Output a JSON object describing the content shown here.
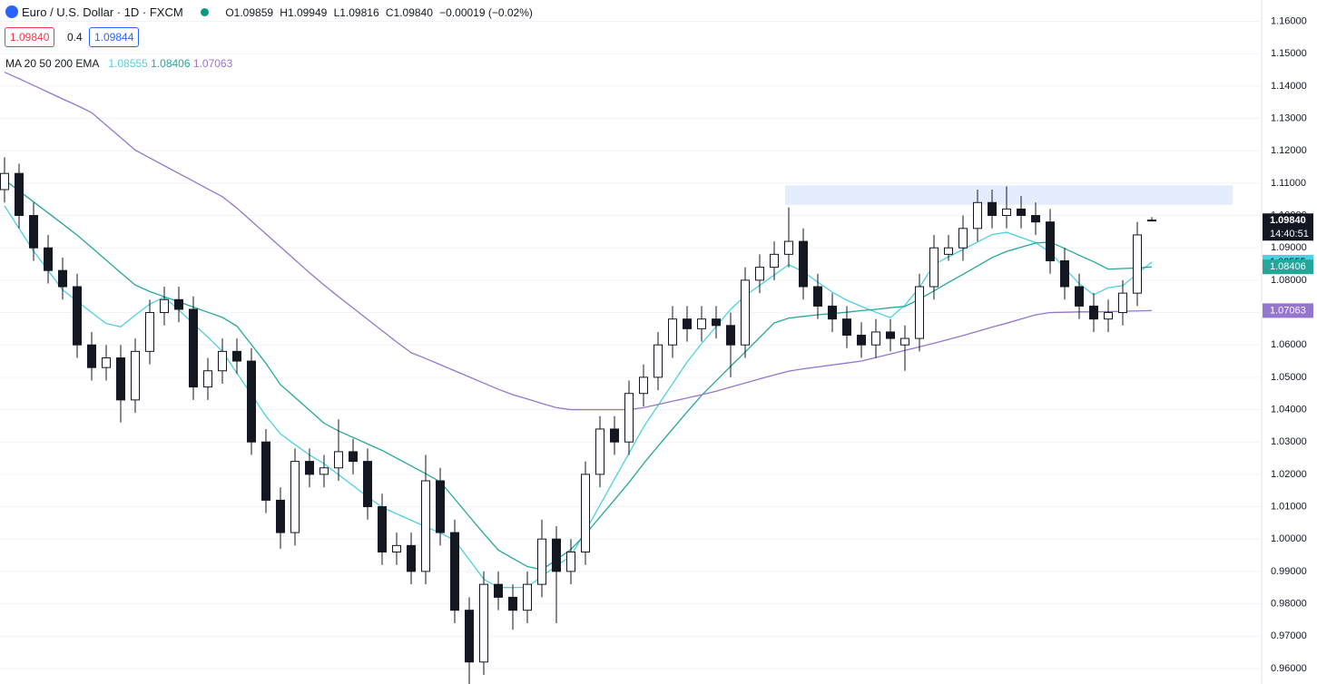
{
  "header": {
    "symbol": "Euro / U.S. Dollar · 1D · FXCM",
    "open": "O1.09859",
    "high": "H1.09949",
    "low": "L1.09816",
    "close": "C1.09840",
    "change": "−0.00019 (−0.02%)",
    "bid": "1.09840",
    "spread": "0.4",
    "ask": "1.09844",
    "indicator": "MA 20 50 200 EMA"
  },
  "chart_data": {
    "type": "candlestick",
    "open": [
      1.108,
      1.113,
      1.1,
      1.09,
      1.083,
      1.078,
      1.06,
      1.053,
      1.056,
      1.043,
      1.058,
      1.07,
      1.074,
      1.071,
      1.047,
      1.052,
      1.058,
      1.055,
      1.03,
      1.012,
      1.002,
      1.024,
      1.02,
      1.022,
      1.027,
      1.024,
      1.01,
      0.996,
      0.998,
      0.99,
      1.018,
      1.002,
      0.978,
      0.962,
      0.986,
      0.982,
      0.978,
      0.986,
      1.0,
      0.99,
      0.996,
      1.02,
      1.034,
      1.03,
      1.045,
      1.05,
      1.06,
      1.068,
      1.065,
      1.068,
      1.066,
      1.06,
      1.08,
      1.084,
      1.088,
      1.092,
      1.078,
      1.072,
      1.068,
      1.063,
      1.06,
      1.064,
      1.06,
      1.062,
      1.078,
      1.088,
      1.09,
      1.096,
      1.104,
      1.1,
      1.102,
      1.1,
      1.098,
      1.086,
      1.078,
      1.072,
      1.068,
      1.07,
      1.076,
      1.09859
    ],
    "high": [
      1.118,
      1.116,
      1.104,
      1.094,
      1.087,
      1.082,
      1.064,
      1.06,
      1.06,
      1.062,
      1.074,
      1.078,
      1.078,
      1.075,
      1.056,
      1.062,
      1.062,
      1.059,
      1.034,
      1.016,
      1.028,
      1.028,
      1.026,
      1.037,
      1.031,
      1.028,
      1.014,
      1.002,
      1.002,
      1.026,
      1.022,
      1.006,
      0.982,
      0.99,
      0.99,
      0.986,
      0.99,
      1.006,
      1.004,
      1.0,
      1.024,
      1.038,
      1.038,
      1.049,
      1.054,
      1.064,
      1.072,
      1.072,
      1.072,
      1.072,
      1.07,
      1.084,
      1.088,
      1.092,
      1.1025,
      1.096,
      1.082,
      1.076,
      1.072,
      1.067,
      1.068,
      1.068,
      1.066,
      1.082,
      1.094,
      1.094,
      1.1,
      1.108,
      1.108,
      1.109,
      1.106,
      1.104,
      1.102,
      1.09,
      1.082,
      1.076,
      1.074,
      1.08,
      1.098,
      1.09949
    ],
    "low": [
      1.104,
      1.096,
      1.086,
      1.079,
      1.074,
      1.056,
      1.049,
      1.049,
      1.036,
      1.039,
      1.054,
      1.066,
      1.067,
      1.043,
      1.043,
      1.048,
      1.051,
      1.026,
      1.008,
      0.997,
      0.998,
      1.016,
      1.016,
      1.018,
      1.02,
      1.006,
      0.992,
      0.992,
      0.986,
      0.986,
      0.998,
      0.974,
      0.955,
      0.958,
      0.978,
      0.972,
      0.974,
      0.982,
      0.974,
      0.986,
      0.992,
      1.016,
      1.026,
      1.026,
      1.041,
      1.046,
      1.056,
      1.061,
      1.061,
      1.062,
      1.05,
      1.056,
      1.076,
      1.08,
      1.084,
      1.074,
      1.068,
      1.064,
      1.059,
      1.056,
      1.056,
      1.058,
      1.052,
      1.058,
      1.074,
      1.086,
      1.086,
      1.092,
      1.096,
      1.096,
      1.096,
      1.094,
      1.082,
      1.074,
      1.068,
      1.064,
      1.064,
      1.066,
      1.072,
      1.09816
    ],
    "close": [
      1.113,
      1.1,
      1.09,
      1.083,
      1.078,
      1.06,
      1.053,
      1.056,
      1.043,
      1.058,
      1.07,
      1.074,
      1.071,
      1.047,
      1.052,
      1.058,
      1.055,
      1.03,
      1.012,
      1.002,
      1.024,
      1.02,
      1.022,
      1.027,
      1.024,
      1.01,
      0.996,
      0.998,
      0.99,
      1.018,
      1.002,
      0.978,
      0.962,
      0.986,
      0.982,
      0.978,
      0.986,
      1.0,
      0.99,
      0.996,
      1.02,
      1.034,
      1.03,
      1.045,
      1.05,
      1.06,
      1.068,
      1.065,
      1.068,
      1.066,
      1.06,
      1.08,
      1.084,
      1.088,
      1.092,
      1.078,
      1.072,
      1.068,
      1.063,
      1.06,
      1.064,
      1.062,
      1.062,
      1.078,
      1.09,
      1.09,
      1.096,
      1.104,
      1.1,
      1.102,
      1.1,
      1.098,
      1.086,
      1.078,
      1.072,
      1.068,
      1.07,
      1.076,
      1.094,
      1.0984
    ],
    "close_label": "1.09840",
    "countdown": "14:40:51",
    "up_color": "#ffffff",
    "down_color": "#131722",
    "wick_color": "#131722",
    "series": [
      {
        "color": "#4dd0e1",
        "value_label": "1.08555",
        "values": [
          1.103,
          1.096,
          1.089,
          1.083,
          1.077,
          1.0735,
          1.07,
          1.0666,
          1.0656,
          1.0692,
          1.0726,
          1.0748,
          1.0708,
          1.0665,
          1.0624,
          1.058,
          1.0513,
          1.0447,
          1.038,
          1.0325,
          1.0292,
          1.026,
          1.0233,
          1.0199,
          1.0165,
          1.0131,
          1.0098,
          1.0078,
          1.0058,
          1.0038,
          1.0019,
          0.9996,
          0.9936,
          0.9876,
          0.985,
          0.985,
          0.9851,
          0.9885,
          0.9917,
          0.9948,
          1.0025,
          1.0105,
          1.0185,
          1.0265,
          1.0346,
          1.0413,
          1.048,
          1.0547,
          1.0604,
          1.0657,
          1.071,
          1.0752,
          1.0784,
          1.0816,
          1.0848,
          1.0826,
          1.0794,
          1.0763,
          1.0738,
          1.0719,
          1.0701,
          1.0684,
          1.0723,
          1.0777,
          1.0849,
          1.0872,
          1.0895,
          1.0918,
          1.0941,
          1.0948,
          1.0932,
          1.0916,
          1.0886,
          1.0838,
          1.0789,
          1.0755,
          1.0777,
          1.0783,
          1.082,
          1.0856
        ]
      },
      {
        "color": "#26a69a",
        "value_label": "1.08406",
        "values": [
          1.111,
          1.1076,
          1.1042,
          1.1008,
          1.0974,
          1.0939,
          1.0901,
          1.0862,
          1.0823,
          1.0785,
          1.0765,
          1.0749,
          1.0733,
          1.0717,
          1.0701,
          1.0685,
          1.0658,
          1.0601,
          1.0543,
          1.0477,
          1.0438,
          1.0398,
          1.0358,
          1.0334,
          1.0314,
          1.0294,
          1.0274,
          1.025,
          1.0226,
          1.0202,
          1.0177,
          1.0124,
          1.007,
          1.0017,
          0.9966,
          0.994,
          0.9915,
          0.9905,
          0.9936,
          0.9968,
          1.0015,
          1.0068,
          1.0121,
          1.0175,
          1.0233,
          1.0287,
          1.034,
          1.0393,
          1.0444,
          1.0489,
          1.0534,
          1.0578,
          1.0623,
          1.0668,
          1.0683,
          1.0688,
          1.0693,
          1.0697,
          1.0701,
          1.0706,
          1.071,
          1.0715,
          1.0719,
          1.0741,
          1.0767,
          1.0793,
          1.0818,
          1.0844,
          1.087,
          1.0889,
          1.0902,
          1.0915,
          1.0918,
          1.0898,
          1.0877,
          1.0857,
          1.0834,
          1.0836,
          1.0838,
          1.0841
        ]
      },
      {
        "color": "#9575cd",
        "value_label": "1.07063",
        "values": [
          1.1443,
          1.1423,
          1.1402,
          1.1381,
          1.136,
          1.134,
          1.1318,
          1.1279,
          1.1241,
          1.1202,
          1.1178,
          1.1154,
          1.113,
          1.1106,
          1.1082,
          1.1058,
          1.1023,
          1.0983,
          1.0943,
          1.0903,
          1.0863,
          1.0823,
          1.0785,
          1.0749,
          1.0714,
          1.0679,
          1.0644,
          1.0609,
          1.0576,
          1.0558,
          1.0539,
          1.052,
          1.0501,
          1.0482,
          1.0463,
          1.0446,
          1.0433,
          1.0419,
          1.0406,
          1.04,
          1.04,
          1.04,
          1.04,
          1.04,
          1.0406,
          1.0416,
          1.0426,
          1.0436,
          1.0446,
          1.0457,
          1.047,
          1.0482,
          1.0495,
          1.0507,
          1.0519,
          1.0526,
          1.0532,
          1.0538,
          1.0544,
          1.055,
          1.0561,
          1.0572,
          1.0583,
          1.0594,
          1.0605,
          1.0617,
          1.0629,
          1.0642,
          1.0655,
          1.0667,
          1.068,
          1.0693,
          1.07,
          1.0701,
          1.0702,
          1.0702,
          1.0703,
          1.0704,
          1.0705,
          1.0706
        ]
      }
    ],
    "resistance_zone": {
      "low": 1.1033,
      "high": 1.1093,
      "color": "#e3edfd"
    },
    "ylim": [
      0.9552,
      1.1666
    ],
    "yticks": [
      {
        "value": 0.96,
        "label": "0.96000"
      },
      {
        "value": 0.97,
        "label": "0.97000"
      },
      {
        "value": 0.98,
        "label": "0.98000"
      },
      {
        "value": 0.99,
        "label": "0.99000"
      },
      {
        "value": 1.0,
        "label": "1.00000"
      },
      {
        "value": 1.01,
        "label": "1.01000"
      },
      {
        "value": 1.02,
        "label": "1.02000"
      },
      {
        "value": 1.03,
        "label": "1.03000"
      },
      {
        "value": 1.04,
        "label": "1.04000"
      },
      {
        "value": 1.05,
        "label": "1.05000"
      },
      {
        "value": 1.06,
        "label": "1.06000"
      },
      {
        "value": 1.07,
        "label": "1.07000"
      },
      {
        "value": 1.08,
        "label": "1.08000"
      },
      {
        "value": 1.09,
        "label": "1.09000"
      },
      {
        "value": 1.1,
        "label": "1.10000"
      },
      {
        "value": 1.11,
        "label": "1.11000"
      },
      {
        "value": 1.12,
        "label": "1.12000"
      },
      {
        "value": 1.13,
        "label": "1.13000"
      },
      {
        "value": 1.14,
        "label": "1.14000"
      },
      {
        "value": 1.15,
        "label": "1.15000"
      },
      {
        "value": 1.16,
        "label": "1.16000"
      }
    ],
    "grid": true
  }
}
